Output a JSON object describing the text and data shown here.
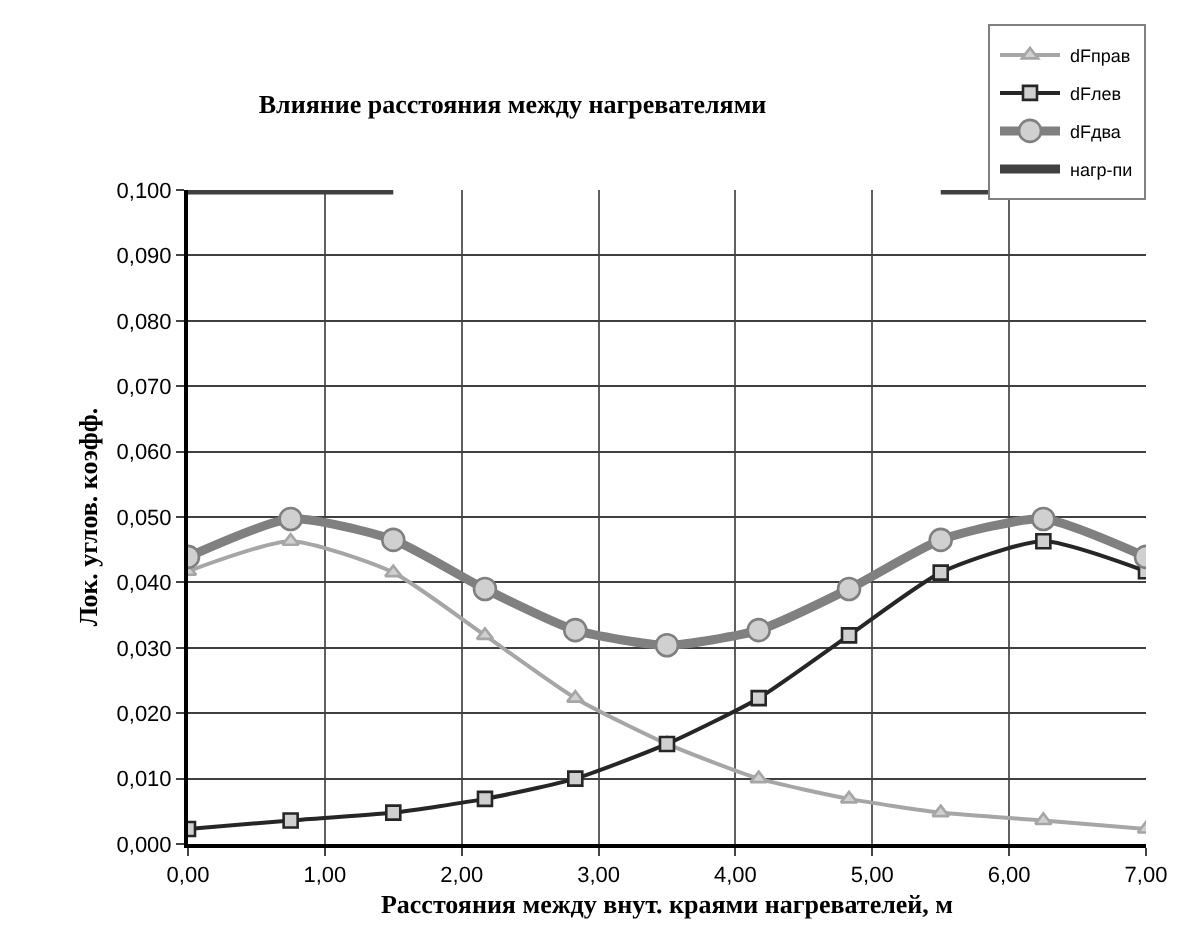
{
  "chart_data": {
    "type": "line",
    "title": "Влияние расстояния между нагревателями",
    "xlabel": "Расстояния между внут. краями нагревателей, м",
    "ylabel": "Лок. углов. коэфф.",
    "x": [
      0,
      0.75,
      1.5,
      2.17,
      2.83,
      3.5,
      4.17,
      4.83,
      5.5,
      6.25,
      7
    ],
    "series": [
      {
        "name": "dFправ",
        "color": "#a6a6a6",
        "marker": "triangle",
        "values": [
          0.0417,
          0.0463,
          0.0415,
          0.0319,
          0.0223,
          0.0153,
          0.01,
          0.0069,
          0.0048,
          0.0036,
          0.0023
        ]
      },
      {
        "name": "dFлев",
        "color": "#262626",
        "marker": "square",
        "values": [
          0.0023,
          0.0036,
          0.0048,
          0.0069,
          0.01,
          0.0153,
          0.0223,
          0.0319,
          0.0415,
          0.0463,
          0.0417
        ]
      },
      {
        "name": "dFдва",
        "color": "#808080",
        "marker": "circle",
        "values": [
          0.0439,
          0.0497,
          0.0465,
          0.039,
          0.0327,
          0.0304,
          0.0327,
          0.039,
          0.0465,
          0.0497,
          0.0439
        ]
      },
      {
        "name": "нагр-пи",
        "color": "#404040",
        "marker": "none",
        "x": [
          0,
          1.5,
          3.5,
          5.5,
          7
        ],
        "values": [
          0.1,
          0.1,
          null,
          0.1,
          0.1
        ]
      }
    ],
    "xlim": [
      0,
      7
    ],
    "ylim": [
      0,
      0.1
    ],
    "xticks": [
      {
        "value": 0,
        "label": "0,00"
      },
      {
        "value": 1,
        "label": "1,00"
      },
      {
        "value": 2,
        "label": "2,00"
      },
      {
        "value": 3,
        "label": "3,00"
      },
      {
        "value": 4,
        "label": "4,00"
      },
      {
        "value": 5,
        "label": "5,00"
      },
      {
        "value": 6,
        "label": "6,00"
      },
      {
        "value": 7,
        "label": "7,00"
      }
    ],
    "yticks": [
      {
        "value": 0,
        "label": "0,000"
      },
      {
        "value": 0.01,
        "label": "0,010"
      },
      {
        "value": 0.02,
        "label": "0,020"
      },
      {
        "value": 0.03,
        "label": "0,030"
      },
      {
        "value": 0.04,
        "label": "0,040"
      },
      {
        "value": 0.05,
        "label": "0,050"
      },
      {
        "value": 0.06,
        "label": "0,060"
      },
      {
        "value": 0.07,
        "label": "0,070"
      },
      {
        "value": 0.08,
        "label": "0,080"
      },
      {
        "value": 0.09,
        "label": "0,090"
      },
      {
        "value": 0.1,
        "label": "0,100"
      }
    ],
    "grid": true,
    "legend": "top right",
    "line_style": "solid"
  }
}
